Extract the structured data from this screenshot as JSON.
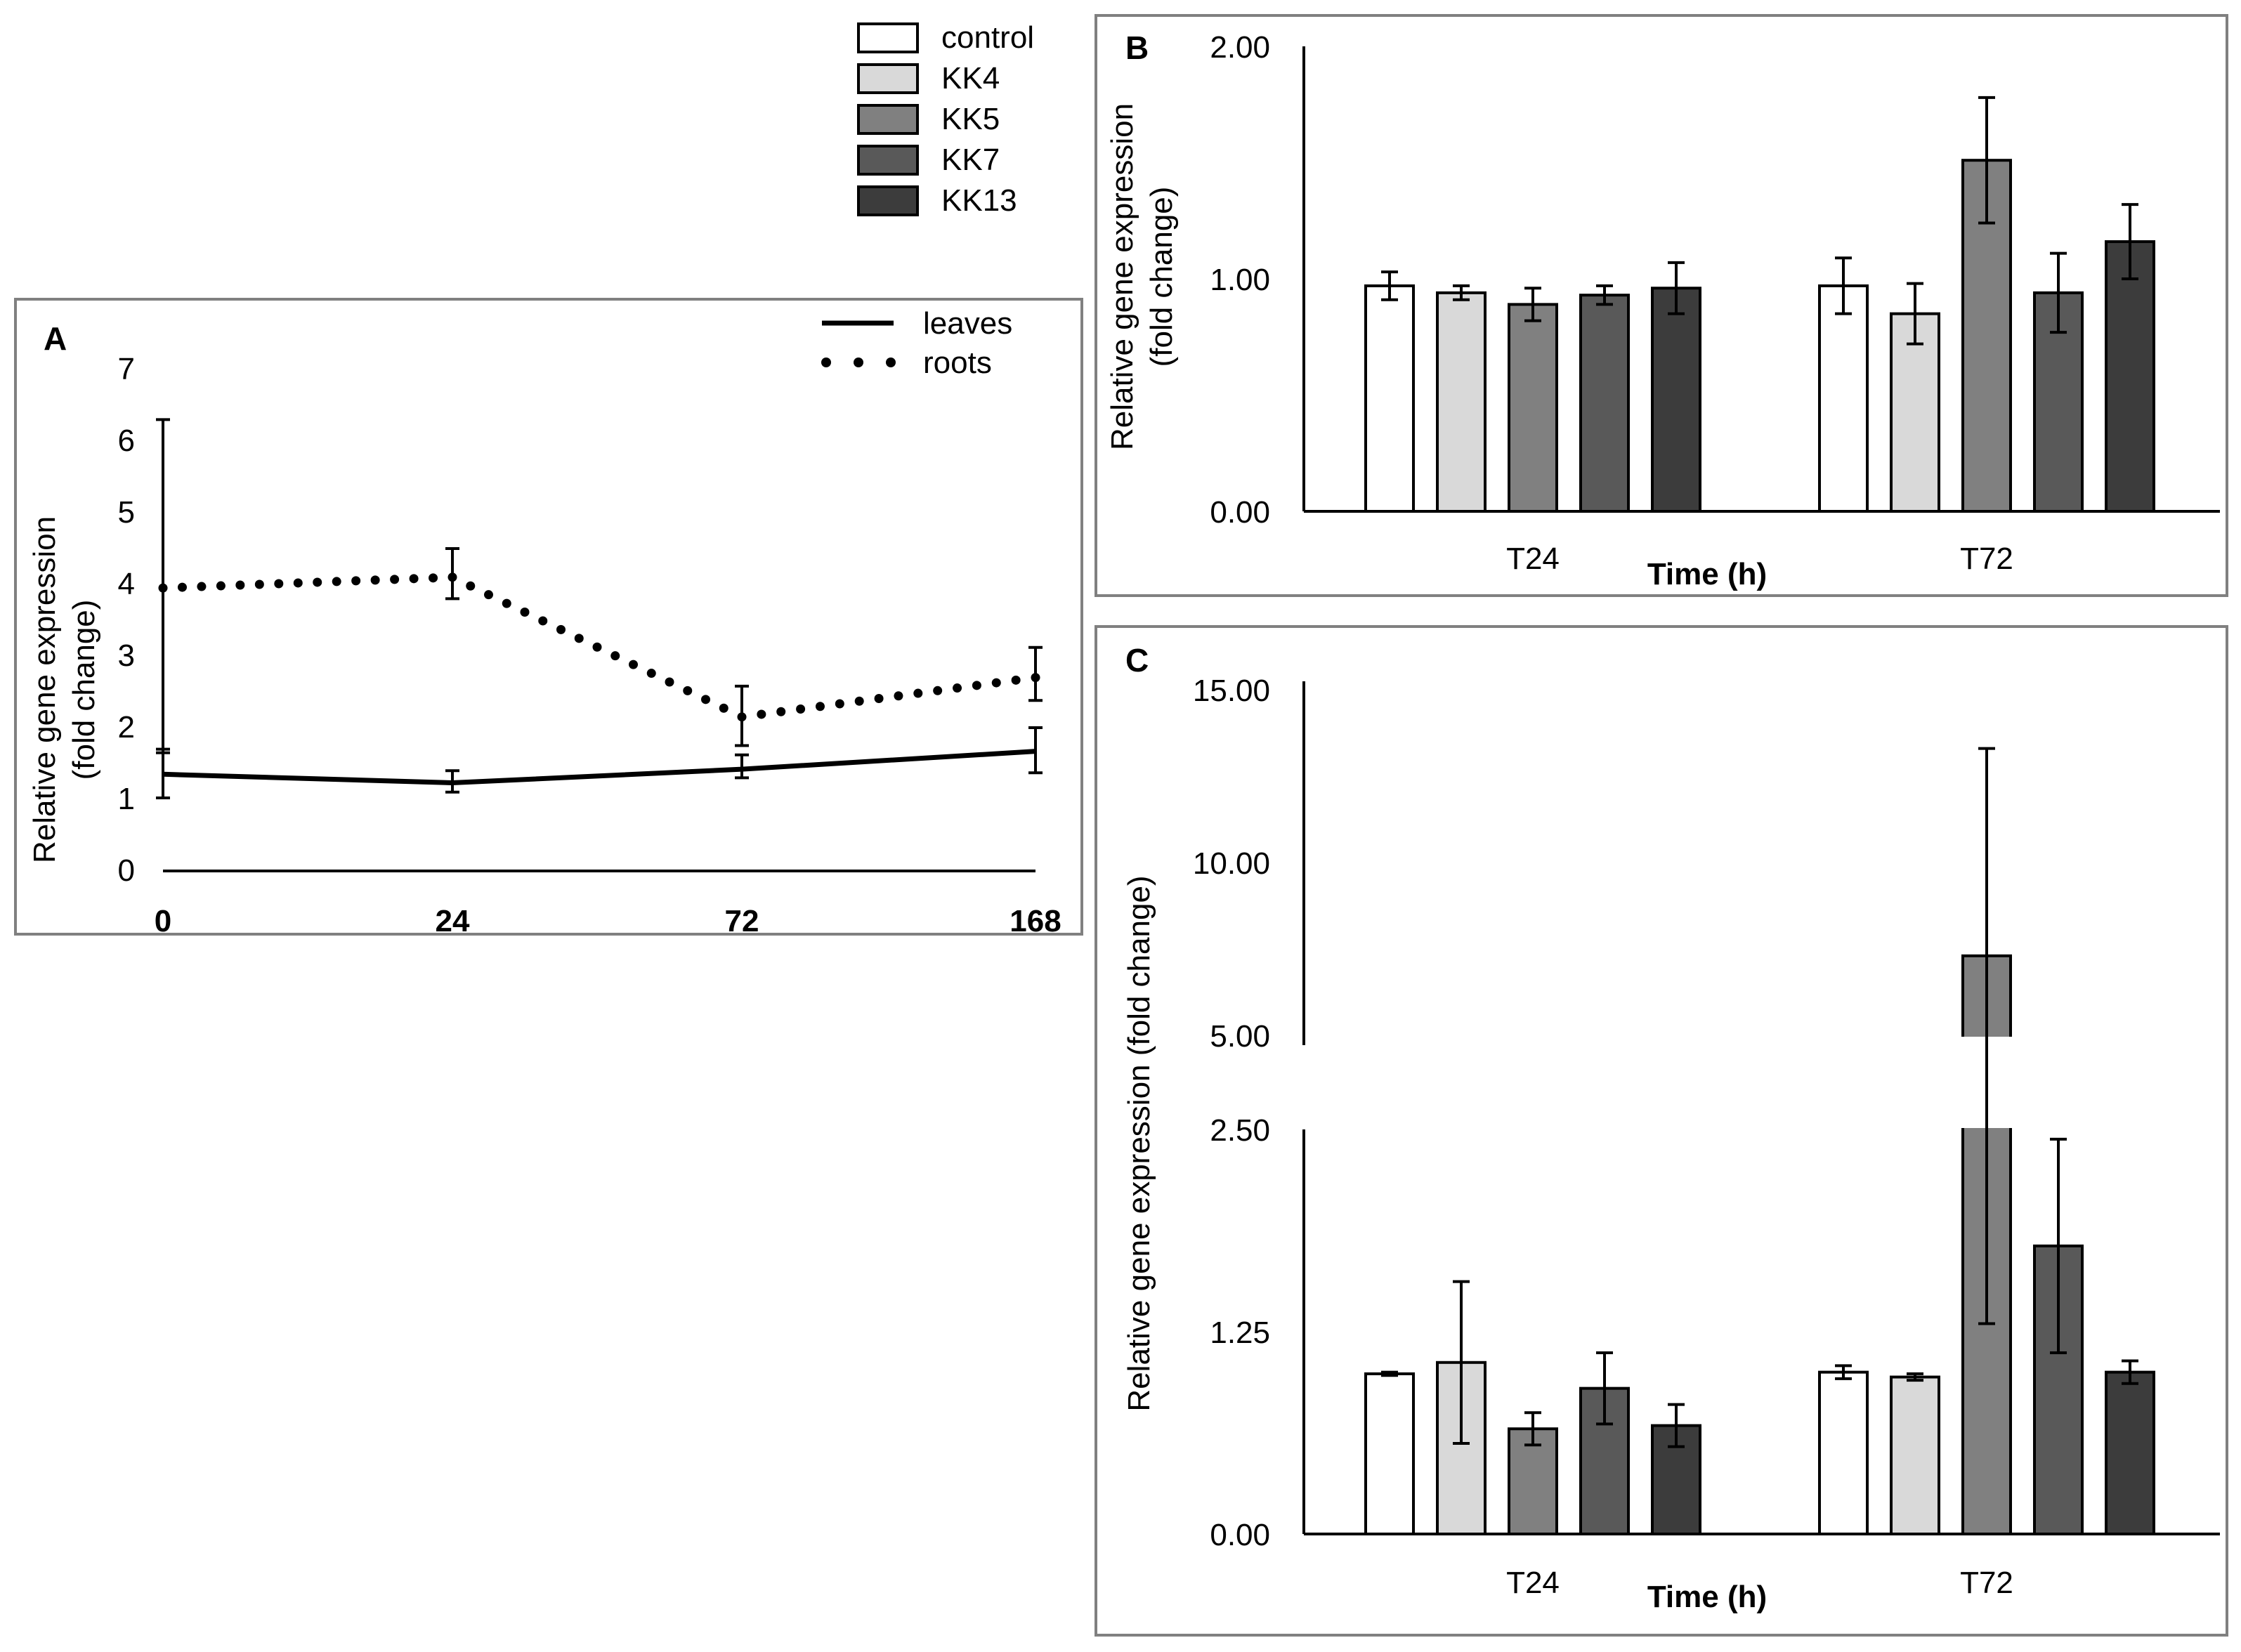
{
  "legend_groups": {
    "items": [
      {
        "label": "control",
        "color": "#ffffff"
      },
      {
        "label": "KK4",
        "color": "#d9d9d9"
      },
      {
        "label": "KK5",
        "color": "#808080"
      },
      {
        "label": "KK7",
        "color": "#595959"
      },
      {
        "label": "KK13",
        "color": "#3c3c3c"
      }
    ]
  },
  "chart_data": [
    {
      "panel": "A",
      "type": "line",
      "x": [
        0,
        24,
        72,
        168
      ],
      "x_tick_labels": [
        "0",
        "24",
        "72",
        "168"
      ],
      "ylabel": "Relative gene expression (fold change)",
      "ylabel_lines": [
        "Relative gene expression",
        "(fold change)"
      ],
      "ylim": [
        0,
        7
      ],
      "yticks": [
        "0",
        "1",
        "2",
        "3",
        "4",
        "5",
        "6",
        "7"
      ],
      "legend_position": "top-right",
      "series": [
        {
          "name": "leaves",
          "style": "solid",
          "values": [
            1.35,
            1.23,
            1.42,
            1.67
          ],
          "err_low": [
            1.02,
            1.1,
            1.3,
            1.37
          ],
          "err_high": [
            1.7,
            1.4,
            1.62,
            2.0
          ]
        },
        {
          "name": "roots",
          "style": "dotted",
          "values": [
            3.95,
            4.1,
            2.15,
            2.7
          ],
          "err_low": [
            1.65,
            3.8,
            1.75,
            2.38
          ],
          "err_high": [
            6.3,
            4.5,
            2.58,
            3.12
          ]
        }
      ]
    },
    {
      "panel": "B",
      "type": "bar",
      "categories": [
        "T24",
        "T72"
      ],
      "xlabel": "Time (h)",
      "ylabel": "Relative gene expression (fold change)",
      "ylabel_lines": [
        "Relative gene expression",
        "(fold change)"
      ],
      "ylim": [
        0,
        2
      ],
      "yticks": [
        "0.00",
        "1.00",
        "2.00"
      ],
      "series": [
        {
          "name": "control",
          "values": [
            0.97,
            0.97
          ],
          "err": [
            0.06,
            0.12
          ]
        },
        {
          "name": "KK4",
          "values": [
            0.94,
            0.85
          ],
          "err": [
            0.03,
            0.13
          ]
        },
        {
          "name": "KK5",
          "values": [
            0.89,
            1.51
          ],
          "err": [
            0.07,
            0.27
          ]
        },
        {
          "name": "KK7",
          "values": [
            0.93,
            0.94
          ],
          "err": [
            0.04,
            0.17
          ]
        },
        {
          "name": "KK13",
          "values": [
            0.96,
            1.16
          ],
          "err": [
            0.11,
            0.16
          ]
        }
      ]
    },
    {
      "panel": "C",
      "type": "bar",
      "categories": [
        "T24",
        "T72"
      ],
      "xlabel": "Time (h)",
      "ylabel": "Relative gene expression (fold change)",
      "ylim": [
        0,
        15
      ],
      "axis_break": [
        2.5,
        5.0
      ],
      "yticks": [
        "0.00",
        "1.25",
        "2.50",
        "5.00",
        "10.00",
        "15.00"
      ],
      "series": [
        {
          "name": "control",
          "values": [
            0.99,
            1.0
          ],
          "err": [
            0.01,
            0.04
          ]
        },
        {
          "name": "KK4",
          "values": [
            1.06,
            0.97
          ],
          "err": [
            0.5,
            0.02
          ]
        },
        {
          "name": "KK5",
          "values": [
            0.65,
            7.3
          ],
          "err": [
            0.1,
            6.0
          ]
        },
        {
          "name": "KK7",
          "values": [
            0.9,
            1.78
          ],
          "err": [
            0.22,
            0.66
          ]
        },
        {
          "name": "KK13",
          "values": [
            0.67,
            1.0
          ],
          "err": [
            0.13,
            0.07
          ]
        }
      ]
    }
  ]
}
